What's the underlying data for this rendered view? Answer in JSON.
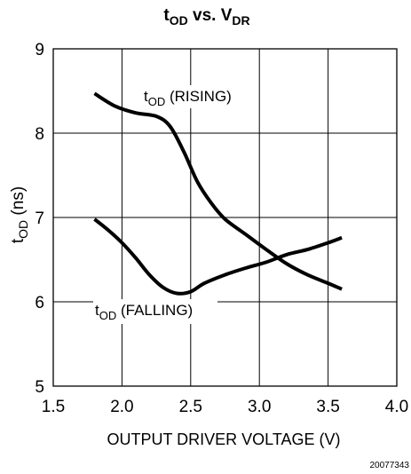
{
  "chart_data": {
    "type": "line",
    "title": {
      "main": "t",
      "main_sub": "OD",
      "mid": " vs. V",
      "mid_sub": "DR"
    },
    "xlabel": "OUTPUT DRIVER VOLTAGE (V)",
    "ylabel": {
      "main": "t",
      "sub": "OD",
      "rest": " (ns)"
    },
    "xlim": [
      1.5,
      4.0
    ],
    "ylim": [
      5,
      9
    ],
    "xticks": [
      "1.5",
      "2.0",
      "2.5",
      "3.0",
      "3.5",
      "4.0"
    ],
    "yticks": [
      "5",
      "6",
      "7",
      "8",
      "9"
    ],
    "grid": true,
    "series": [
      {
        "name": "tOD (RISING)",
        "label": {
          "main": "t",
          "sub": "OD",
          "rest": " (RISING)"
        },
        "x": [
          1.8,
          1.95,
          2.1,
          2.25,
          2.35,
          2.45,
          2.55,
          2.65,
          2.75,
          2.9,
          3.05,
          3.2,
          3.35,
          3.5,
          3.6
        ],
        "y": [
          8.47,
          8.32,
          8.24,
          8.2,
          8.08,
          7.78,
          7.42,
          7.17,
          6.98,
          6.8,
          6.62,
          6.45,
          6.32,
          6.22,
          6.15
        ]
      },
      {
        "name": "tOD (FALLING)",
        "label": {
          "main": "t",
          "sub": "OD",
          "rest": " (FALLING)"
        },
        "x": [
          1.8,
          1.9,
          2.0,
          2.1,
          2.2,
          2.3,
          2.4,
          2.5,
          2.6,
          2.75,
          2.9,
          3.05,
          3.2,
          3.35,
          3.5,
          3.6
        ],
        "y": [
          6.98,
          6.85,
          6.7,
          6.52,
          6.32,
          6.17,
          6.1,
          6.12,
          6.22,
          6.32,
          6.4,
          6.47,
          6.56,
          6.62,
          6.7,
          6.76
        ]
      }
    ]
  },
  "figure_number": "20077343"
}
